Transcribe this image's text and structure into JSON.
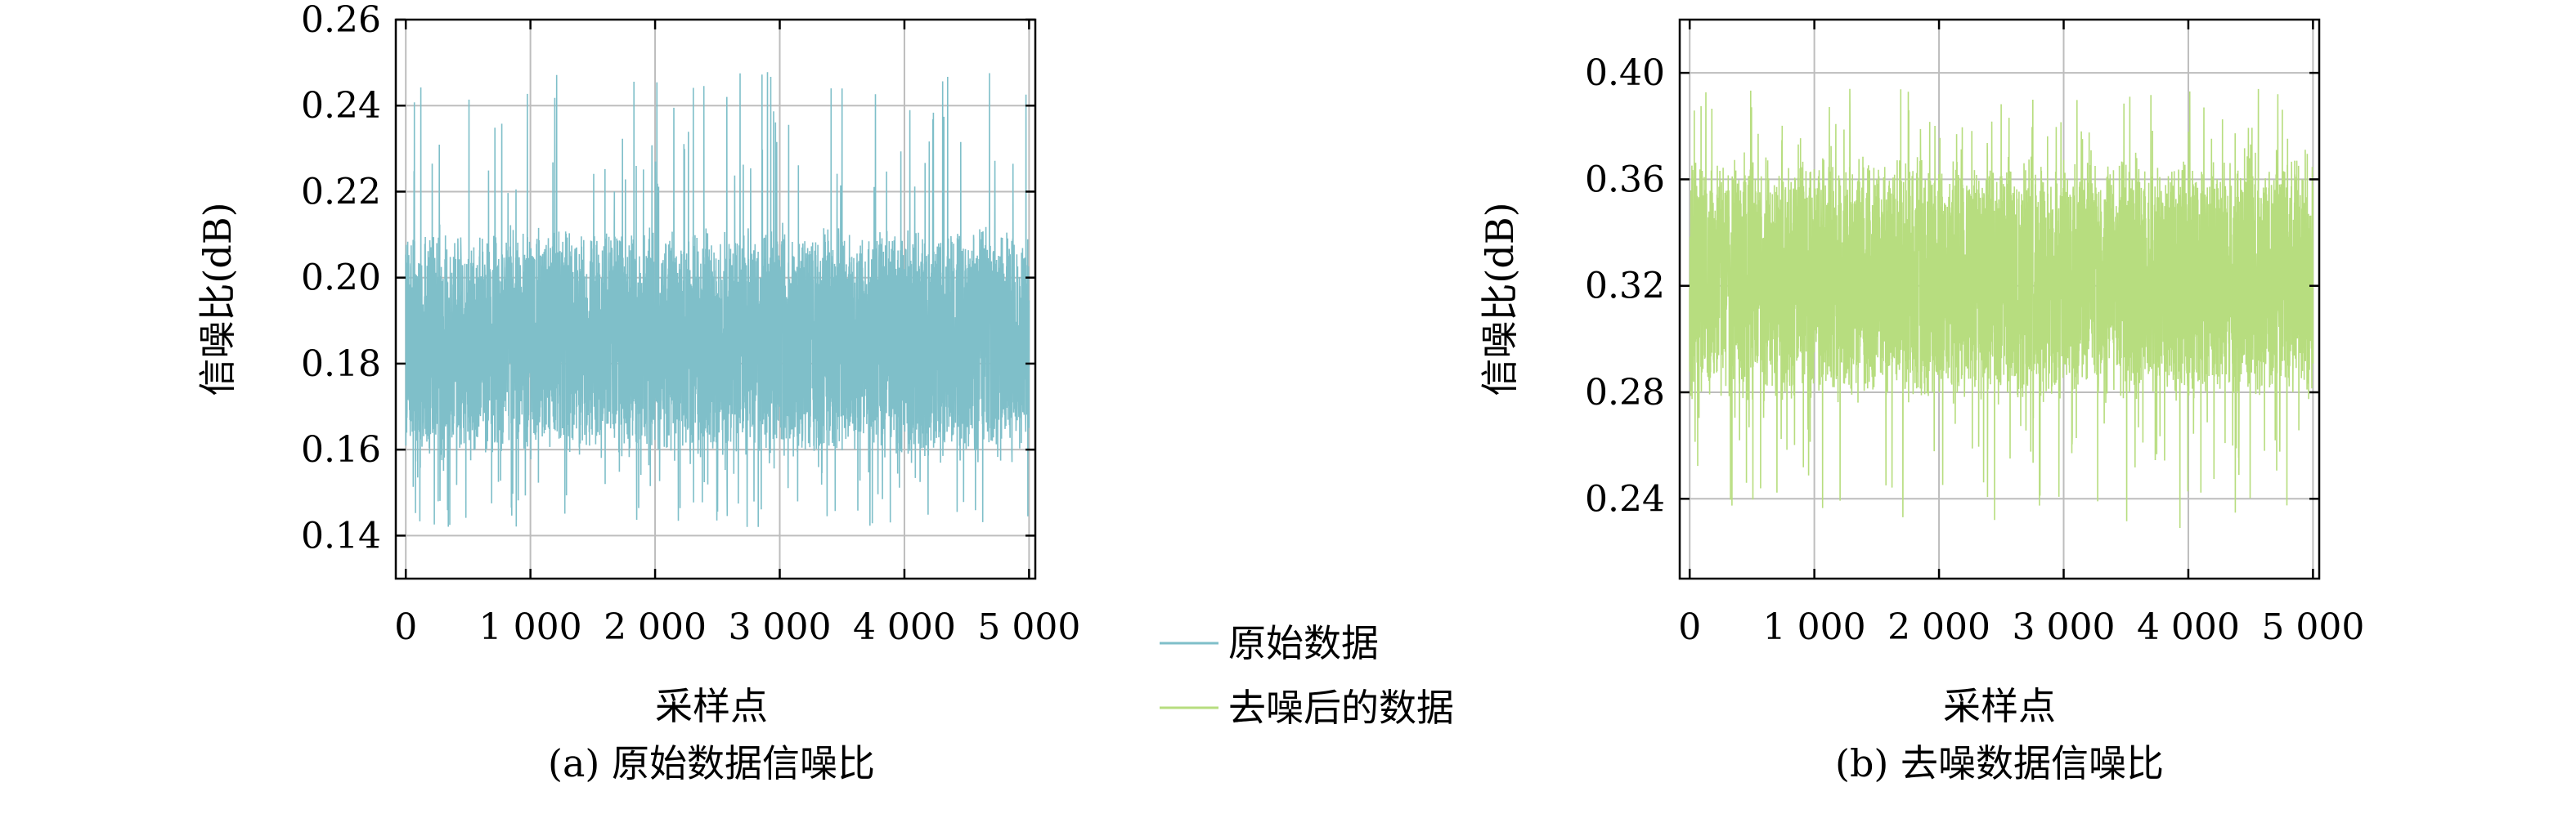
{
  "chart_data": [
    {
      "type": "line",
      "caption": "(a) 原始数据信噪比",
      "xlabel": "采样点",
      "ylabel": "信噪比(dB)",
      "xlim": [
        -80,
        5050
      ],
      "ylim": [
        0.13,
        0.26
      ],
      "xticks": [
        0,
        1000,
        2000,
        3000,
        4000,
        5000
      ],
      "xtick_labels": [
        "0",
        "1 000",
        "2 000",
        "3 000",
        "4 000",
        "5 000"
      ],
      "yticks": [
        0.14,
        0.16,
        0.18,
        0.2,
        0.22,
        0.24,
        0.26
      ],
      "ytick_labels": [
        "0.14",
        "0.16",
        "0.18",
        "0.20",
        "0.22",
        "0.24",
        "0.26"
      ],
      "grid": true,
      "series": [
        {
          "name": "原始数据",
          "color": "#7fbfc9",
          "n_points": 5000,
          "x_range": [
            0,
            5000
          ],
          "mean": 0.185,
          "min": 0.142,
          "max": 0.248,
          "seed": 7
        }
      ]
    },
    {
      "type": "line",
      "caption": "(b) 去噪数据信噪比",
      "xlabel": "采样点",
      "ylabel": "信噪比(dB)",
      "xlim": [
        -80,
        5050
      ],
      "ylim": [
        0.21,
        0.42
      ],
      "xticks": [
        0,
        1000,
        2000,
        3000,
        4000,
        5000
      ],
      "xtick_labels": [
        "0",
        "1 000",
        "2 000",
        "3 000",
        "4 000",
        "5 000"
      ],
      "yticks": [
        0.24,
        0.28,
        0.32,
        0.36,
        0.4
      ],
      "ytick_labels": [
        "0.24",
        "0.28",
        "0.32",
        "0.36",
        "0.40"
      ],
      "grid": true,
      "series": [
        {
          "name": "去噪后的数据",
          "color": "#b7dd7f",
          "n_points": 5000,
          "x_range": [
            0,
            5000
          ],
          "mean": 0.322,
          "min": 0.229,
          "max": 0.395,
          "seed": 13
        }
      ]
    }
  ],
  "legend": {
    "placement": "between-panels",
    "items": [
      {
        "label": "原始数据",
        "color": "#7fbfc9"
      },
      {
        "label": "去噪后的数据",
        "color": "#b7dd7f"
      }
    ]
  }
}
